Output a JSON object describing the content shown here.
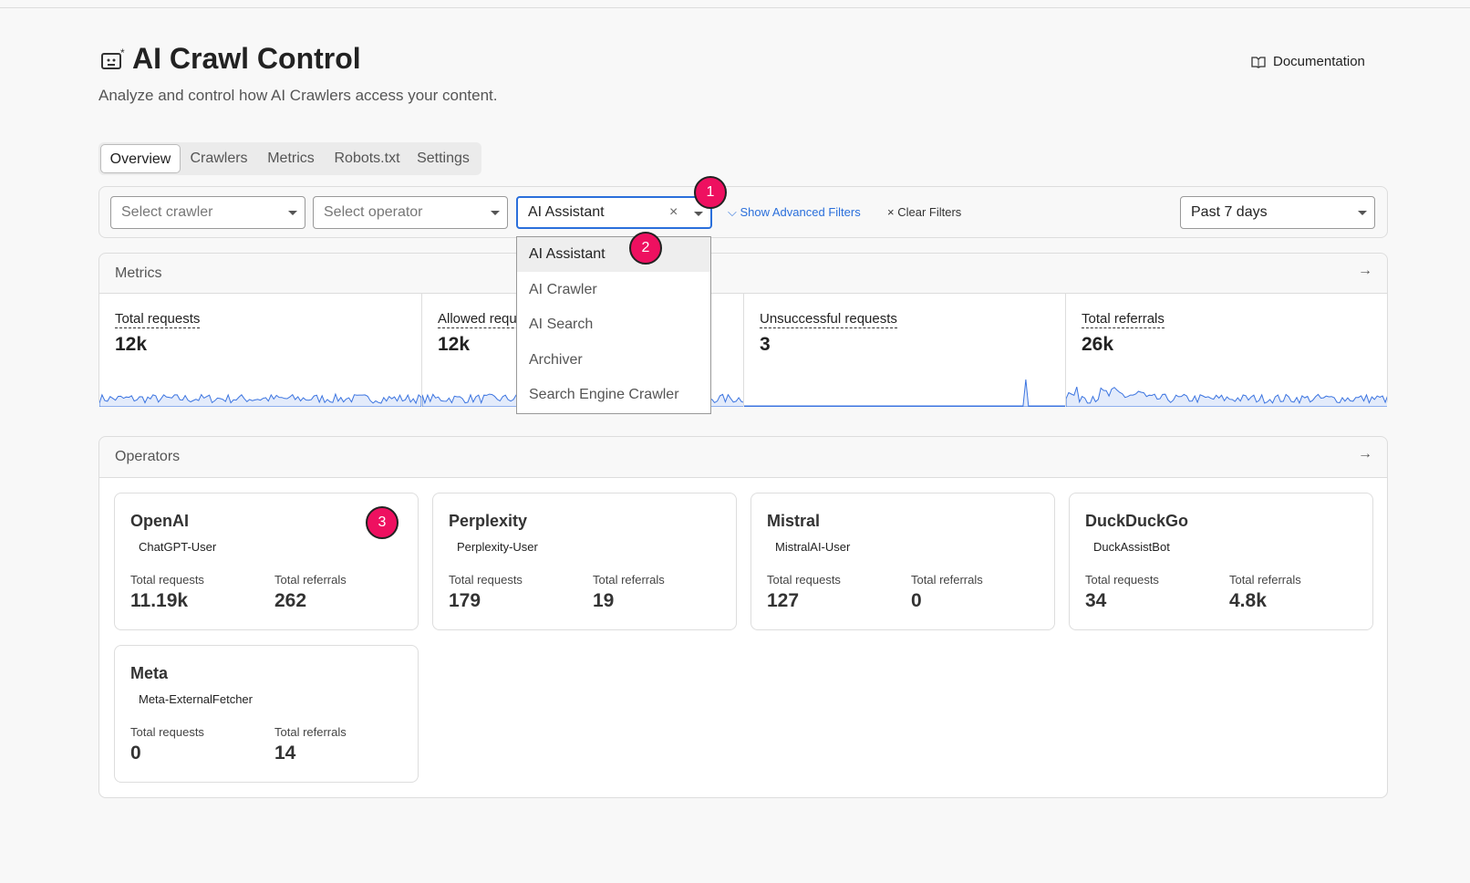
{
  "header": {
    "title": "AI Crawl Control",
    "subtitle": "Analyze and control how AI Crawlers access your content.",
    "documentation": "Documentation"
  },
  "tabs": [
    "Overview",
    "Crawlers",
    "Metrics",
    "Robots.txt",
    "Settings"
  ],
  "filters": {
    "crawler": "Select crawler",
    "operator": "Select operator",
    "category": "AI Assistant",
    "advanced": "Show Advanced Filters",
    "clear": "Clear Filters",
    "time_range": "Past 7 days"
  },
  "dropdown": {
    "options": [
      "AI Assistant",
      "AI Crawler",
      "AI Search",
      "Archiver",
      "Search Engine Crawler"
    ]
  },
  "badges": [
    "1",
    "2",
    "3"
  ],
  "metrics": {
    "title": "Metrics",
    "cards": [
      {
        "label": "Total requests",
        "value": "12k"
      },
      {
        "label": "Allowed requests",
        "value": "12k"
      },
      {
        "label": "Unsuccessful requests",
        "value": "3"
      },
      {
        "label": "Total referrals",
        "value": "26k"
      }
    ]
  },
  "operators": {
    "title": "Operators",
    "cards": [
      {
        "name": "OpenAI",
        "bot": "ChatGPT-User",
        "requests_label": "Total requests",
        "requests": "11.19k",
        "referrals_label": "Total referrals",
        "referrals": "262"
      },
      {
        "name": "Perplexity",
        "bot": "Perplexity-User",
        "requests_label": "Total requests",
        "requests": "179",
        "referrals_label": "Total referrals",
        "referrals": "19"
      },
      {
        "name": "Mistral",
        "bot": "MistralAI-User",
        "requests_label": "Total requests",
        "requests": "127",
        "referrals_label": "Total referrals",
        "referrals": "0"
      },
      {
        "name": "DuckDuckGo",
        "bot": "DuckAssistBot",
        "requests_label": "Total requests",
        "requests": "34",
        "referrals_label": "Total referrals",
        "referrals": "4.8k"
      },
      {
        "name": "Meta",
        "bot": "Meta-ExternalFetcher",
        "requests_label": "Total requests",
        "requests": "0",
        "referrals_label": "Total referrals",
        "referrals": "14"
      }
    ]
  }
}
